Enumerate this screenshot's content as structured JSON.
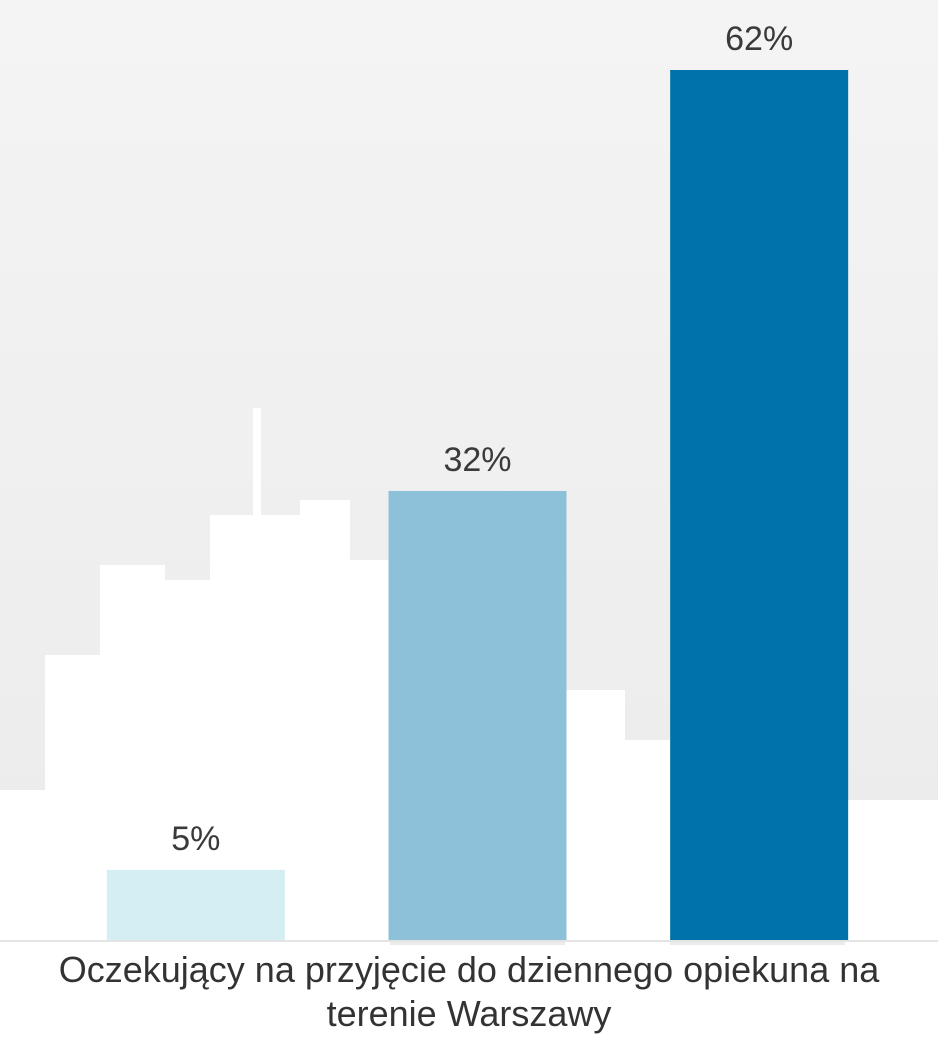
{
  "chart_data": {
    "type": "bar",
    "categories": [
      null,
      null,
      null
    ],
    "values": [
      5,
      32,
      62
    ],
    "value_labels": [
      "5%",
      "32%",
      "62%"
    ],
    "colors": [
      "#d4eef3",
      "#8dc1da",
      "#0072ab"
    ],
    "xlabel": "Oczekujący na przyjęcie do dziennego opiekuna na terenie Warszawy"
  }
}
